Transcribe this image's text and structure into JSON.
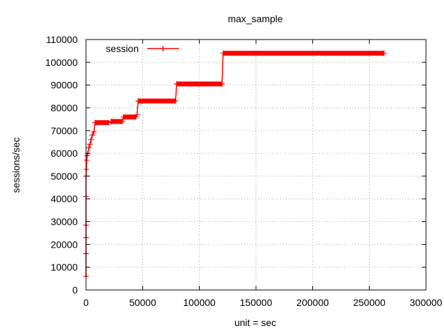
{
  "chart_data": {
    "type": "line",
    "title": "max_sample",
    "xlabel": "unit = sec",
    "ylabel": "sessions/sec",
    "xlim": [
      0,
      300000
    ],
    "ylim": [
      0,
      110000
    ],
    "x_ticks": [
      "0",
      "50000",
      "100000",
      "150000",
      "200000",
      "250000",
      "300000"
    ],
    "y_ticks": [
      "0",
      "10000",
      "20000",
      "30000",
      "40000",
      "50000",
      "60000",
      "70000",
      "80000",
      "90000",
      "100000",
      "110000"
    ],
    "grid": true,
    "legend_position": "top-left",
    "series": [
      {
        "name": "session",
        "color": "#ff0000",
        "points": [
          [
            0,
            6000
          ],
          [
            0,
            16000
          ],
          [
            0,
            23000
          ],
          [
            0,
            28500
          ],
          [
            0,
            41000
          ],
          [
            0,
            50000
          ],
          [
            300,
            53000
          ],
          [
            600,
            57000
          ],
          [
            1000,
            59000
          ],
          [
            1500,
            60000
          ],
          [
            2500,
            62500
          ],
          [
            3500,
            64000
          ],
          [
            4500,
            66000
          ],
          [
            5500,
            68000
          ],
          [
            7000,
            69500
          ],
          [
            8000,
            73500
          ],
          [
            20000,
            73500
          ],
          [
            22000,
            74000
          ],
          [
            32000,
            74000
          ],
          [
            33000,
            76000
          ],
          [
            44000,
            76000
          ],
          [
            45000,
            77000
          ],
          [
            46000,
            83000
          ],
          [
            79000,
            83000
          ],
          [
            80000,
            90500
          ],
          [
            120000,
            90500
          ],
          [
            121000,
            104000
          ],
          [
            263000,
            104000
          ]
        ]
      }
    ]
  }
}
